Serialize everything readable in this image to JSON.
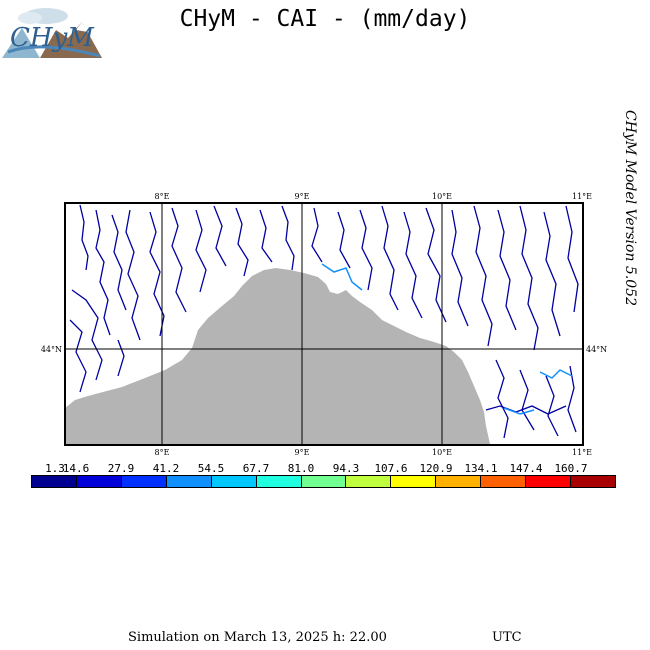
{
  "header": {
    "title": "CHyM - CAI - (mm/day)",
    "logo_text": "CHyM"
  },
  "side": {
    "version": "CHyM Model Version 5.052"
  },
  "map": {
    "lon_ticks_top": [
      "8°E",
      "9°E",
      "10°E",
      "11°E"
    ],
    "lon_ticks_bottom": [
      "8°E",
      "9°E",
      "10°E",
      "11°E"
    ],
    "lat_tick_left": "44°N",
    "lat_tick_right": "44°N",
    "sea_color": "#b4b4b4",
    "land_color": "#ffffff",
    "river_color": "#0000a0"
  },
  "legend": {
    "labels": [
      "1.3",
      "14.6",
      "27.9",
      "41.2",
      "54.5",
      "67.7",
      "81.0",
      "94.3",
      "107.6",
      "120.9",
      "134.1",
      "147.4",
      "160.7"
    ],
    "colors": [
      "#000090",
      "#0000d8",
      "#0030ff",
      "#1090ff",
      "#00c8ff",
      "#20ffe0",
      "#70ff90",
      "#c0ff40",
      "#ffff00",
      "#ffb000",
      "#ff6000",
      "#ff0000",
      "#a80000"
    ]
  },
  "footer": {
    "simulation": "Simulation on March 13, 2025 h: 22.00",
    "tz": "UTC"
  }
}
